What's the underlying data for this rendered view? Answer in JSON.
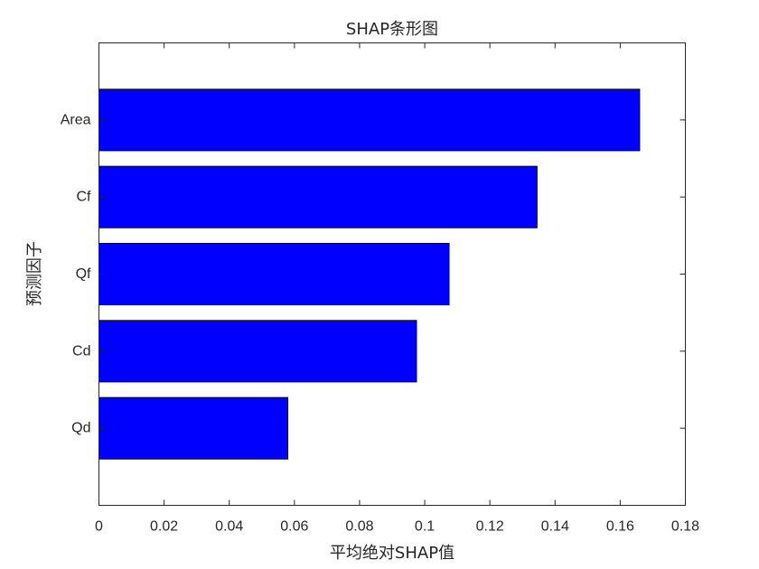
{
  "chart_data": {
    "type": "bar",
    "orientation": "horizontal",
    "title": "SHAP条形图",
    "xlabel": "平均绝对SHAP值",
    "ylabel": "预测因子",
    "categories": [
      "Area",
      "Cf",
      "Qf",
      "Cd",
      "Qd"
    ],
    "values": [
      0.166,
      0.1345,
      0.1075,
      0.0975,
      0.058
    ],
    "xlim": [
      0,
      0.18
    ],
    "xticks": [
      0,
      0.02,
      0.04,
      0.06,
      0.08,
      0.1,
      0.12,
      0.14,
      0.16,
      0.18
    ],
    "xtick_labels": [
      "0",
      "0.02",
      "0.04",
      "0.06",
      "0.08",
      "0.1",
      "0.12",
      "0.14",
      "0.16",
      "0.18"
    ],
    "bar_color": "#0000FF",
    "grid": false,
    "legend": false
  }
}
